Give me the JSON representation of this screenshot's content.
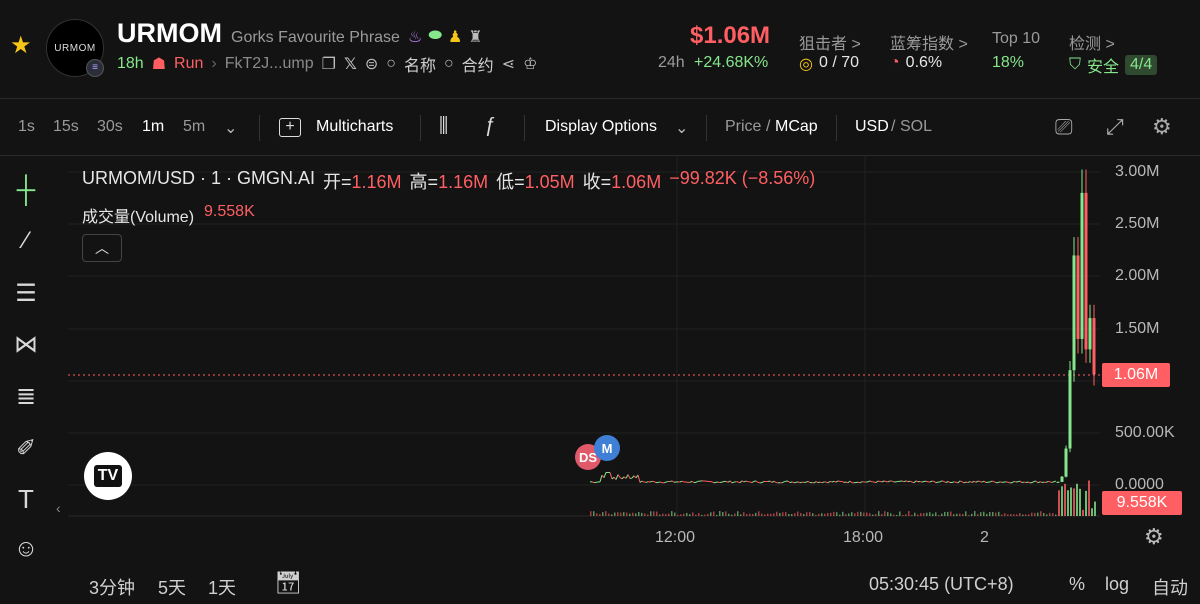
{
  "token": {
    "logo_text": "URMOM",
    "name": "URMOM",
    "phrase": "Gorks Favourite Phrase",
    "age": "18h",
    "status": "Run",
    "address": "FkT2J...ump",
    "name_search_label": "名称",
    "contract_search_label": "合约"
  },
  "header_stats": {
    "price": "$1.06M",
    "change_label": "24h",
    "change_value": "+24.68K%",
    "snipers_label": "狙击者 >",
    "snipers_value": "0 / 70",
    "chips_label": "蓝筹指数 >",
    "chips_value": "0.6%",
    "top10_label": "Top 10",
    "top10_value": "18%",
    "detect_label": "检测 >",
    "detect_value": "安全",
    "detect_score": "4/4"
  },
  "toolbar": {
    "intervals": [
      "1s",
      "15s",
      "30s",
      "1m",
      "5m"
    ],
    "active_interval": "1m",
    "multicharts_label": "Multicharts",
    "display_options_label": "Display Options",
    "price_label": "Price",
    "mcap_label": "MCap",
    "usd_label": "USD",
    "sol_label": "SOL"
  },
  "legend": {
    "symbol": "URMOM/USD · 1 · GMGN.AI",
    "open_label": "开=",
    "open_value": "1.16M",
    "high_label": "高=",
    "high_value": "1.16M",
    "low_label": "低=",
    "low_value": "1.05M",
    "close_label": "收=",
    "close_value": "1.06M",
    "change": "−99.82K (−8.56%)",
    "volume_label": "成交量(Volume)",
    "volume_value": "9.558K"
  },
  "markers": {
    "ds": "DS",
    "m": "M"
  },
  "tv_logo_text": "TV",
  "chart_data": {
    "type": "candlestick",
    "y_axis_ticks": [
      "3.00M",
      "2.50M",
      "2.00M",
      "1.50M",
      "1.06M",
      "500.00K",
      "0.0000"
    ],
    "x_axis_ticks": [
      "12:00",
      "18:00",
      "2"
    ],
    "last_price_label": "1.06M",
    "last_volume_label": "9.558K",
    "series_close": [
      0.03,
      0.04,
      0.03,
      0.03,
      0.03,
      0.02,
      0.02,
      0.02,
      0.02,
      0.02,
      0.03,
      0.08,
      0.35,
      1.1,
      2.2,
      1.4,
      2.8,
      1.3,
      1.6,
      1.06
    ]
  },
  "bottom": {
    "range_3m": "3分钟",
    "range_5d": "5天",
    "range_1d": "1天",
    "time": "05:30:45 (UTC+8)",
    "percent_label": "%",
    "log_label": "log",
    "auto_label": "自动"
  },
  "colors": {
    "up": "#86e68c",
    "down": "#ff5f62",
    "background": "#131313"
  }
}
